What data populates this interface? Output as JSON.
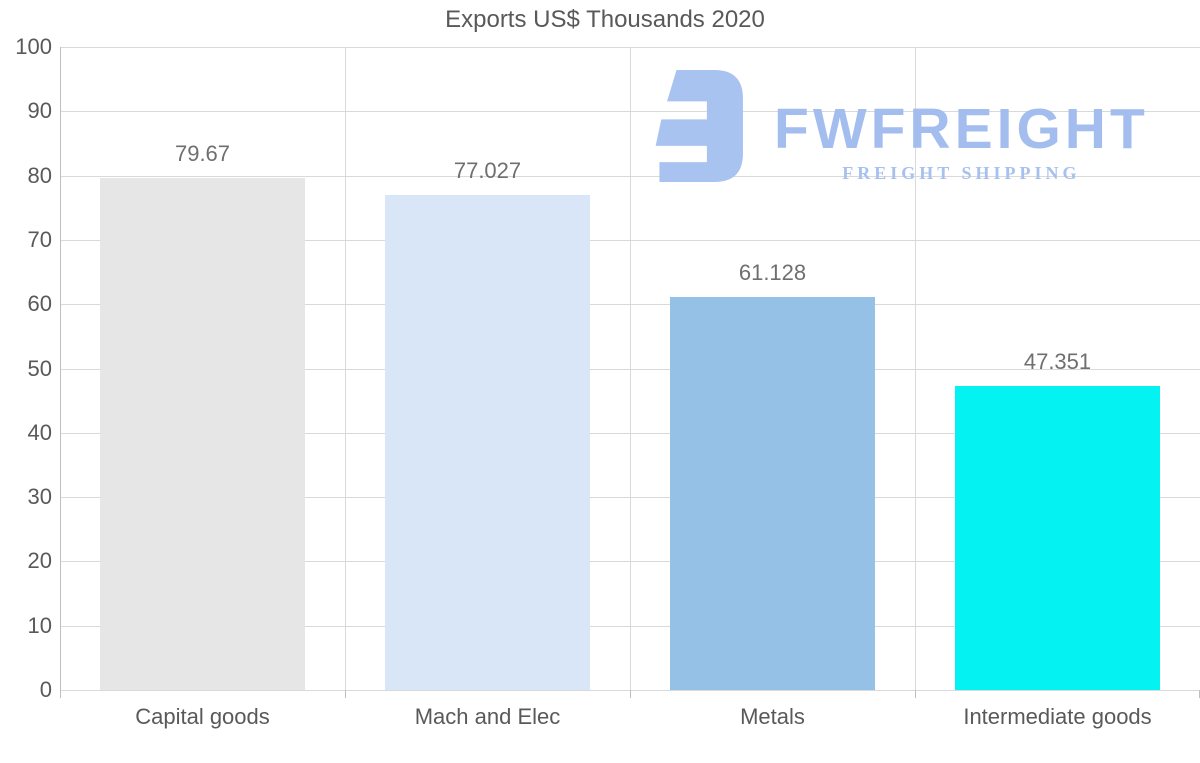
{
  "title": "Exports US$ Thousands 2020",
  "watermark": {
    "brand": "FWFREIGHT",
    "tagline": "FREIGHT SHIPPING",
    "mark_color": "#a9c3f0",
    "brand_color": "#a2bdee",
    "tagline_color": "#a6c0ef"
  },
  "chart_data": {
    "type": "bar",
    "title": "Exports US$ Thousands 2020",
    "categories": [
      "Capital goods",
      "Mach and Elec",
      "Metals",
      "Intermediate goods"
    ],
    "values": [
      79.67,
      77.027,
      61.128,
      47.351
    ],
    "value_labels": [
      "79.67",
      "77.027",
      "61.128",
      "47.351"
    ],
    "bar_colors": [
      "#e6e6e6",
      "#d9e6f7",
      "#95c1e7",
      "#05f2f2"
    ],
    "xlabel": "",
    "ylabel": "",
    "ylim": [
      0,
      100
    ],
    "yticks": [
      0,
      10,
      20,
      30,
      40,
      50,
      60,
      70,
      80,
      90,
      100
    ],
    "grid": true,
    "legend": false
  },
  "colors": {
    "background": "#ffffff",
    "title_text": "#595959",
    "axis_label_text": "#595959",
    "value_label_text": "#6f6f6f",
    "gridline": "#d9d9d9",
    "axis_line": "#bfbfbf"
  }
}
